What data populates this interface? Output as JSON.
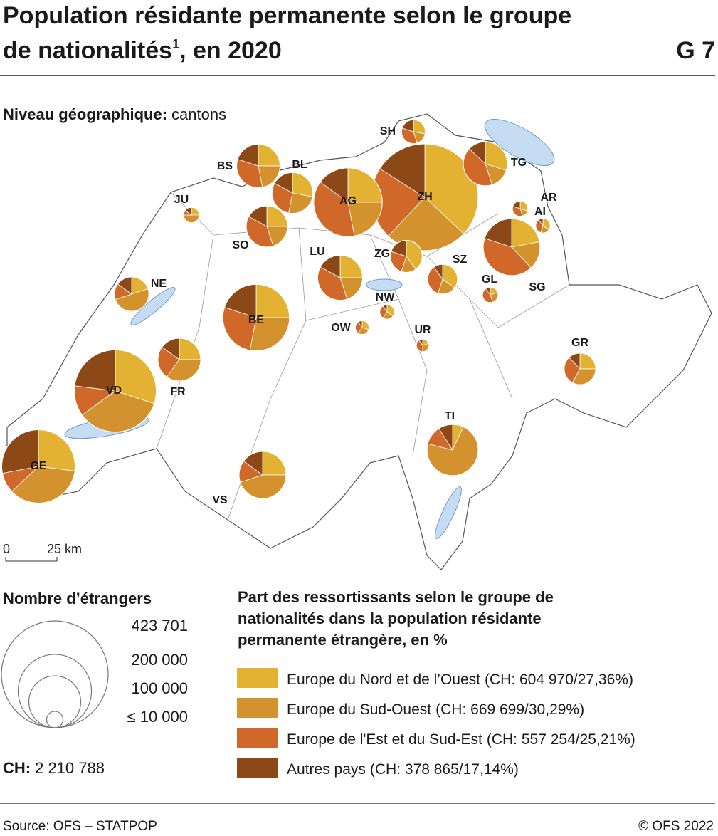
{
  "header": {
    "title_line1": "Population résidante permanente selon le groupe",
    "title_line2": "de nationalités",
    "footnote_mark": "1",
    "title_line2_end": ", en 2020",
    "code": "G 7"
  },
  "level": {
    "label": "Niveau géographique:",
    "value": "cantons"
  },
  "scale_bar": {
    "start": "0",
    "end": "25 km"
  },
  "size_legend": {
    "title": "Nombre d’étrangers",
    "items": [
      {
        "value": 423701,
        "label": "423 701"
      },
      {
        "value": 200000,
        "label": "200 000"
      },
      {
        "value": 100000,
        "label": "100 000"
      },
      {
        "value": 10000,
        "label": "≤ 10 000"
      }
    ],
    "total_label": "CH:",
    "total": {
      "value": 2210788,
      "label": "2 210 788"
    }
  },
  "share_legend": {
    "title_lines": [
      "Part des ressortissants selon le groupe de",
      "nationalités dans la population résidante",
      "permanente étrangère, en %"
    ],
    "items": [
      {
        "name": "Europe du Nord et de l’Ouest",
        "color": "#e3b232",
        "total_label": "(CH: 604 970/27,36%)"
      },
      {
        "name": "Europe du Sud-Ouest",
        "color": "#d4922e",
        "total_label": "(CH: 669 699/30,29%)"
      },
      {
        "name": "Europe de l'Est et du Sud-Est",
        "color": "#cf6828",
        "total_label": "(CH: 557 254/25,21%)"
      },
      {
        "name": "Autres pays",
        "color": "#8d4818",
        "total_label": "(CH: 378 865/17,14%)"
      }
    ]
  },
  "cantons": [
    {
      "label": "ZH",
      "count": 423701,
      "shares": [
        37,
        25,
        22,
        16
      ]
    },
    {
      "label": "GE",
      "count": 200000,
      "shares": [
        27,
        36,
        9,
        28
      ]
    },
    {
      "label": "VD",
      "count": 250000,
      "shares": [
        30,
        35,
        12,
        23
      ]
    },
    {
      "label": "BE",
      "count": 165000,
      "shares": [
        25,
        28,
        27,
        20
      ]
    },
    {
      "label": "AG",
      "count": 175000,
      "shares": [
        25,
        22,
        38,
        15
      ]
    },
    {
      "label": "SG",
      "count": 120000,
      "shares": [
        22,
        16,
        42,
        20
      ]
    },
    {
      "label": "BS",
      "count": 70000,
      "shares": [
        25,
        22,
        33,
        20
      ]
    },
    {
      "label": "BL",
      "count": 62000,
      "shares": [
        28,
        25,
        30,
        17
      ]
    },
    {
      "label": "LU",
      "count": 75000,
      "shares": [
        25,
        20,
        38,
        17
      ]
    },
    {
      "label": "TI",
      "count": 97000,
      "shares": [
        7,
        72,
        12,
        9
      ]
    },
    {
      "label": "TG",
      "count": 72000,
      "shares": [
        30,
        15,
        42,
        13
      ]
    },
    {
      "label": "SO",
      "count": 63000,
      "shares": [
        25,
        20,
        38,
        17
      ]
    },
    {
      "label": "VS",
      "count": 82000,
      "shares": [
        25,
        45,
        15,
        15
      ]
    },
    {
      "label": "FR",
      "count": 68000,
      "shares": [
        25,
        35,
        25,
        15
      ]
    },
    {
      "label": "NE",
      "count": 44000,
      "shares": [
        20,
        50,
        15,
        15
      ]
    },
    {
      "label": "ZG",
      "count": 38000,
      "shares": [
        40,
        15,
        25,
        20
      ]
    },
    {
      "label": "SZ",
      "count": 33000,
      "shares": [
        35,
        20,
        35,
        10
      ]
    },
    {
      "label": "GR",
      "count": 37000,
      "shares": [
        25,
        33,
        30,
        12
      ]
    },
    {
      "label": "SH",
      "count": 21000,
      "shares": [
        28,
        17,
        35,
        20
      ]
    },
    {
      "label": "JU",
      "count": 9000,
      "shares": [
        25,
        50,
        10,
        15
      ]
    },
    {
      "label": "AR",
      "count": 9000,
      "shares": [
        30,
        15,
        35,
        20
      ]
    },
    {
      "label": "AI",
      "count": 8000,
      "shares": [
        35,
        20,
        35,
        10
      ]
    },
    {
      "label": "GL",
      "count": 9000,
      "shares": [
        20,
        25,
        45,
        10
      ]
    },
    {
      "label": "NW",
      "count": 8000,
      "shares": [
        35,
        25,
        30,
        10
      ]
    },
    {
      "label": "OW",
      "count": 7000,
      "shares": [
        30,
        30,
        30,
        10
      ]
    },
    {
      "label": "UR",
      "count": 6000,
      "shares": [
        20,
        30,
        40,
        10
      ]
    }
  ],
  "source": "Source: OFS – STATPOP",
  "copyright": "© OFS 2022"
}
